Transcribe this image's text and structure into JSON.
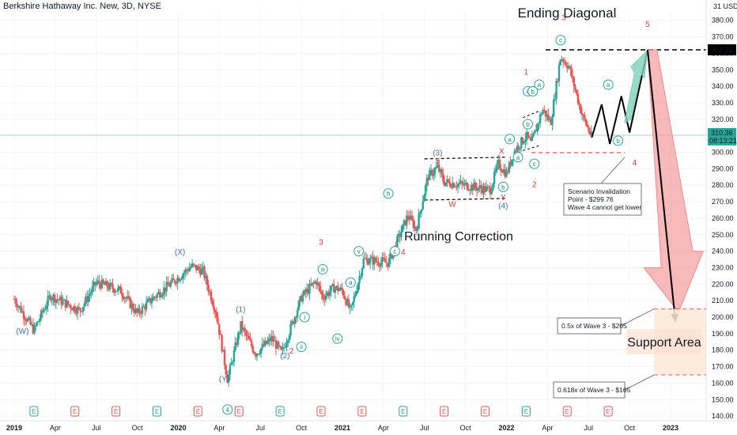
{
  "header": {
    "symbol_title": "Berkshire Hathaway Inc. New, 3D, NYSE",
    "currency": "USD"
  },
  "price_labels": {
    "resistance": "362.10",
    "current": "310.36",
    "countdown": "08:13:21"
  },
  "colors": {
    "bull": "#26a69a",
    "bear": "#ef5350",
    "wave_count_blue": "#2962ff",
    "wave_count_red": "#e53935",
    "projection": "#f28b8b",
    "support_fill": "#fde7d6",
    "teal_arrow": "#7fd1b9"
  },
  "chart_data": {
    "type": "candlestick",
    "title": "",
    "y_axis": {
      "min": 140,
      "max": 390,
      "ticks": [
        140,
        150,
        160,
        170,
        180,
        190,
        200,
        210,
        220,
        230,
        240,
        250,
        260,
        270,
        280,
        290,
        300,
        310,
        320,
        330,
        340,
        350,
        360,
        370,
        380
      ]
    },
    "x_ticks": [
      "2019",
      "Apr",
      "Jul",
      "Oct",
      "2020",
      "Apr",
      "Jul",
      "Oct",
      "2021",
      "Apr",
      "Jul",
      "Oct",
      "2022",
      "Apr",
      "Jul",
      "Oct",
      "2023"
    ],
    "price_path": [
      [
        2019.0,
        211
      ],
      [
        2019.12,
        192
      ],
      [
        2019.22,
        213
      ],
      [
        2019.4,
        204
      ],
      [
        2019.5,
        221
      ],
      [
        2019.65,
        216
      ],
      [
        2019.75,
        202
      ],
      [
        2019.85,
        212
      ],
      [
        2020.0,
        224
      ],
      [
        2020.08,
        231
      ],
      [
        2020.15,
        228
      ],
      [
        2020.23,
        203
      ],
      [
        2020.3,
        162
      ],
      [
        2020.38,
        195
      ],
      [
        2020.47,
        178
      ],
      [
        2020.57,
        187
      ],
      [
        2020.63,
        178
      ],
      [
        2020.75,
        212
      ],
      [
        2020.84,
        222
      ],
      [
        2020.88,
        212
      ],
      [
        2020.95,
        218
      ],
      [
        2021.0,
        216
      ],
      [
        2021.05,
        203
      ],
      [
        2021.13,
        235
      ],
      [
        2021.28,
        233
      ],
      [
        2021.4,
        262
      ],
      [
        2021.45,
        253
      ],
      [
        2021.52,
        285
      ],
      [
        2021.58,
        291
      ],
      [
        2021.62,
        282
      ],
      [
        2021.75,
        280
      ],
      [
        2021.9,
        277
      ],
      [
        2021.95,
        293
      ],
      [
        2022.0,
        287
      ],
      [
        2022.05,
        301
      ],
      [
        2022.12,
        310
      ],
      [
        2022.15,
        305
      ],
      [
        2022.22,
        326
      ],
      [
        2022.27,
        318
      ],
      [
        2022.33,
        358
      ],
      [
        2022.38,
        352
      ],
      [
        2022.46,
        323
      ],
      [
        2022.52,
        309
      ]
    ],
    "horizontal_levels": [
      {
        "label": "362.10",
        "value": 362.1
      },
      {
        "label": "Scenario Invalidation",
        "value": 299.76
      }
    ],
    "annotations": [
      {
        "text": "Ending Diagonal"
      },
      {
        "text": "Running Correction"
      },
      {
        "text": "Scenario Invalidation\nPoint - $299.76\nWave 4 cannot get lower"
      },
      {
        "text": "0.5x of Wave 3 - $205"
      },
      {
        "text": "0.618x of Wave 3 - $165"
      },
      {
        "text": "Support Area"
      }
    ],
    "wave_labels": [
      {
        "text": "(W)",
        "x": 2019.05,
        "y": 190,
        "color": "blue"
      },
      {
        "text": "(X)",
        "x": 2020.01,
        "y": 238,
        "color": "blue"
      },
      {
        "text": "(1)",
        "x": 2020.38,
        "y": 203,
        "color": "blue"
      },
      {
        "text": "(Y)",
        "x": 2020.28,
        "y": 161,
        "color": "blue"
      },
      {
        "text": "(2)",
        "x": 2020.65,
        "y": 175,
        "color": "blue"
      },
      {
        "text": "2",
        "x": 2020.69,
        "y": 178,
        "color": "red"
      },
      {
        "text": "3",
        "x": 2020.87,
        "y": 244,
        "color": "red"
      },
      {
        "text": "4",
        "x": 2021.37,
        "y": 238,
        "color": "red"
      },
      {
        "text": "(3)",
        "x": 2021.58,
        "y": 298,
        "color": "blue"
      },
      {
        "text": "5",
        "x": 2021.58,
        "y": 293,
        "color": "red"
      },
      {
        "text": "W",
        "x": 2021.67,
        "y": 267,
        "color": "red"
      },
      {
        "text": "X",
        "x": 2021.97,
        "y": 299,
        "color": "red"
      },
      {
        "text": "Y",
        "x": 2021.98,
        "y": 271,
        "color": "red"
      },
      {
        "text": "(4)",
        "x": 2021.98,
        "y": 266,
        "color": "blue"
      },
      {
        "text": "1",
        "x": 2022.12,
        "y": 347,
        "color": "red"
      },
      {
        "text": "2",
        "x": 2022.17,
        "y": 279,
        "color": "red"
      },
      {
        "text": "3",
        "x": 2022.35,
        "y": 380,
        "color": "red"
      },
      {
        "text": "4",
        "x": 2022.78,
        "y": 292,
        "color": "red"
      },
      {
        "text": "5",
        "x": 2022.86,
        "y": 376,
        "color": "red"
      }
    ],
    "circled_labels": [
      {
        "text": "iii",
        "x": 2020.88,
        "y": 229
      },
      {
        "text": "v",
        "x": 2021.1,
        "y": 240
      },
      {
        "text": "ii",
        "x": 2020.75,
        "y": 182
      },
      {
        "text": "i",
        "x": 2020.77,
        "y": 200
      },
      {
        "text": "iv",
        "x": 2020.97,
        "y": 187
      },
      {
        "text": "a",
        "x": 2021.05,
        "y": 221
      },
      {
        "text": "b",
        "x": 2021.28,
        "y": 275
      },
      {
        "text": "c",
        "x": 2021.32,
        "y": 240
      },
      {
        "text": "a",
        "x": 2022.02,
        "y": 308
      },
      {
        "text": "b",
        "x": 2021.98,
        "y": 279
      },
      {
        "text": "c",
        "x": 2022.17,
        "y": 293
      },
      {
        "text": "a",
        "x": 2022.07,
        "y": 297
      },
      {
        "text": "b",
        "x": 2022.13,
        "y": 317
      },
      {
        "text": "c",
        "x": 2022.13,
        "y": 337
      },
      {
        "text": "b",
        "x": 2022.16,
        "y": 337
      },
      {
        "text": "a",
        "x": 2022.2,
        "y": 341
      },
      {
        "text": "c",
        "x": 2022.33,
        "y": 368
      },
      {
        "text": "a",
        "x": 2022.62,
        "y": 341
      },
      {
        "text": "b",
        "x": 2022.68,
        "y": 307
      },
      {
        "text": "4",
        "x": 2020.3,
        "y": 144
      }
    ],
    "earnings_markers": [
      "E",
      "E",
      "E",
      "E",
      "E",
      "E",
      "E",
      "E",
      "E",
      "E",
      "E",
      "E",
      "E",
      "E",
      "E"
    ],
    "projection": {
      "target": 197,
      "support_area_range": [
        165,
        205
      ]
    }
  }
}
